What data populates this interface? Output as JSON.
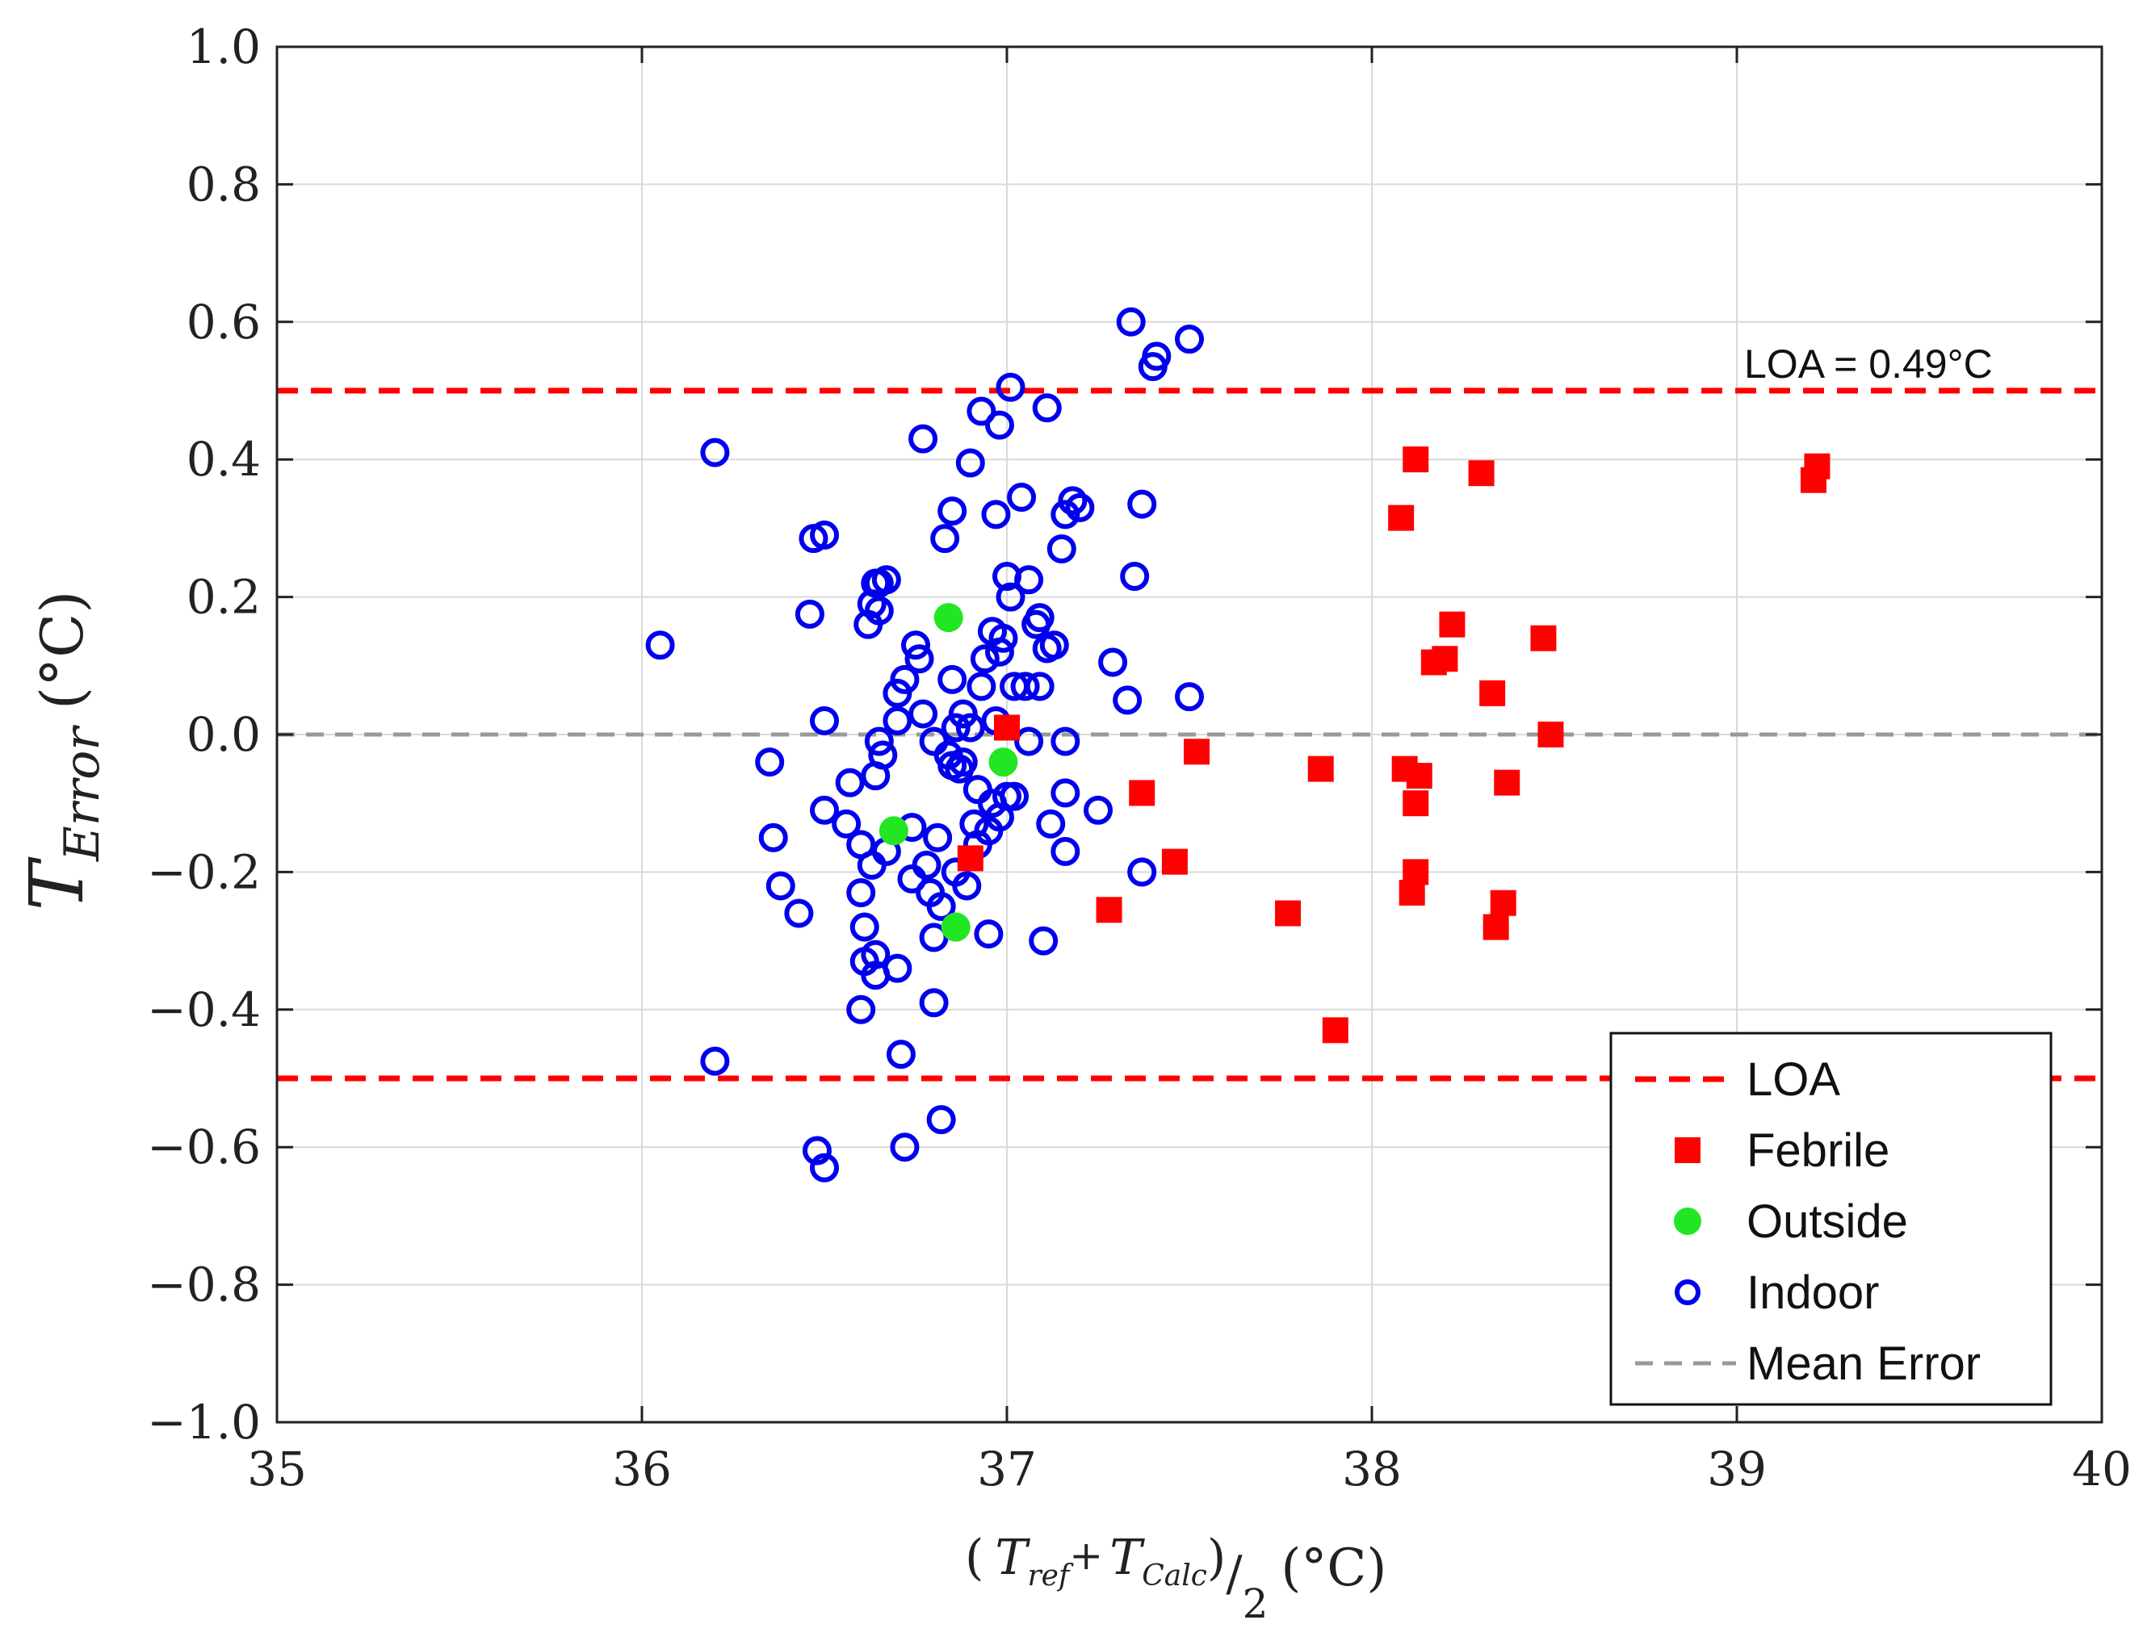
{
  "chart_data": {
    "type": "scatter",
    "title": "",
    "xlabel": {
      "open": "(",
      "t1": "T",
      "s1": "ref",
      "plus": "+",
      "t2": "T",
      "s2": "Calc",
      "close": ")",
      "slash": "/",
      "den": "2",
      "unit": "(°C)"
    },
    "ylabel": {
      "t": "T",
      "sub": "Error",
      "unit": "(°C)"
    },
    "xlim": [
      35,
      40
    ],
    "ylim": [
      -1.0,
      1.0
    ],
    "x_ticks": [
      35,
      36,
      37,
      38,
      39,
      40
    ],
    "x_tick_labels": [
      "35",
      "36",
      "37",
      "38",
      "39",
      "40"
    ],
    "y_ticks": [
      1.0,
      0.8,
      0.6,
      0.4,
      0.2,
      0.0,
      -0.2,
      -0.4,
      -0.6,
      -0.8,
      -1.0
    ],
    "y_tick_labels": [
      "1.0",
      "0.8",
      "0.6",
      "0.4",
      "0.2",
      "0.0",
      "−0.2",
      "−0.4",
      "−0.6",
      "−0.8",
      "−1.0"
    ],
    "grid": true,
    "reference_lines": [
      {
        "name": "LOA",
        "y": 0.5,
        "color": "#ff0000",
        "style": "dashed"
      },
      {
        "name": "LOA",
        "y": -0.5,
        "color": "#ff0000",
        "style": "dashed"
      },
      {
        "name": "Mean Error",
        "y": 0.0,
        "color": "#999999",
        "style": "dashed"
      }
    ],
    "annotation": "LOA = 0.49°C",
    "legend": {
      "location": "bottom-right",
      "entries": [
        {
          "label": "LOA",
          "marker": "dashed-line",
          "color": "#ff0000"
        },
        {
          "label": "Febrile",
          "marker": "square",
          "color": "#ff0000"
        },
        {
          "label": "Outside",
          "marker": "filled-circle",
          "color": "#22e622"
        },
        {
          "label": "Indoor",
          "marker": "open-circle",
          "color": "#0000ee"
        },
        {
          "label": "Mean Error",
          "marker": "dashed-line",
          "color": "#999999"
        }
      ]
    },
    "series": [
      {
        "name": "Indoor",
        "marker": "open-circle",
        "color": "#0000ee",
        "points": [
          [
            36.05,
            0.13
          ],
          [
            36.2,
            0.41
          ],
          [
            36.2,
            -0.475
          ],
          [
            36.35,
            -0.04
          ],
          [
            36.36,
            -0.15
          ],
          [
            36.38,
            -0.22
          ],
          [
            36.43,
            -0.26
          ],
          [
            36.46,
            0.175
          ],
          [
            36.47,
            0.285
          ],
          [
            36.5,
            0.29
          ],
          [
            36.48,
            -0.605
          ],
          [
            36.5,
            -0.63
          ],
          [
            36.5,
            0.02
          ],
          [
            36.5,
            -0.11
          ],
          [
            36.56,
            -0.13
          ],
          [
            36.57,
            -0.07
          ],
          [
            36.6,
            -0.16
          ],
          [
            36.6,
            -0.23
          ],
          [
            36.61,
            -0.28
          ],
          [
            36.61,
            -0.33
          ],
          [
            36.6,
            -0.4
          ],
          [
            36.62,
            0.16
          ],
          [
            36.63,
            0.19
          ],
          [
            36.64,
            0.22
          ],
          [
            36.65,
            0.22
          ],
          [
            36.67,
            0.225
          ],
          [
            36.65,
            0.18
          ],
          [
            36.64,
            -0.06
          ],
          [
            36.65,
            -0.01
          ],
          [
            36.66,
            -0.03
          ],
          [
            36.63,
            -0.19
          ],
          [
            36.64,
            -0.35
          ],
          [
            36.64,
            -0.32
          ],
          [
            36.67,
            -0.17
          ],
          [
            36.7,
            0.02
          ],
          [
            36.7,
            0.06
          ],
          [
            36.72,
            0.08
          ],
          [
            36.7,
            -0.34
          ],
          [
            36.71,
            -0.465
          ],
          [
            36.72,
            -0.6
          ],
          [
            36.74,
            -0.135
          ],
          [
            36.74,
            -0.21
          ],
          [
            36.75,
            0.13
          ],
          [
            36.76,
            0.11
          ],
          [
            36.77,
            0.43
          ],
          [
            36.77,
            0.03
          ],
          [
            36.78,
            -0.19
          ],
          [
            36.79,
            -0.23
          ],
          [
            36.8,
            -0.01
          ],
          [
            36.8,
            -0.295
          ],
          [
            36.8,
            -0.39
          ],
          [
            36.81,
            -0.15
          ],
          [
            36.82,
            -0.56
          ],
          [
            36.82,
            -0.25
          ],
          [
            36.83,
            0.285
          ],
          [
            36.84,
            -0.03
          ],
          [
            36.85,
            0.325
          ],
          [
            36.85,
            0.08
          ],
          [
            36.85,
            -0.045
          ],
          [
            36.86,
            0.01
          ],
          [
            36.86,
            -0.2
          ],
          [
            36.87,
            -0.05
          ],
          [
            36.88,
            0.03
          ],
          [
            36.88,
            -0.04
          ],
          [
            36.89,
            -0.22
          ],
          [
            36.9,
            0.395
          ],
          [
            36.9,
            0.01
          ],
          [
            36.91,
            -0.13
          ],
          [
            36.92,
            -0.08
          ],
          [
            36.92,
            -0.16
          ],
          [
            36.93,
            0.47
          ],
          [
            36.93,
            0.07
          ],
          [
            36.94,
            0.11
          ],
          [
            36.95,
            -0.14
          ],
          [
            36.95,
            -0.29
          ],
          [
            36.96,
            0.15
          ],
          [
            36.96,
            -0.1
          ],
          [
            36.97,
            0.32
          ],
          [
            36.97,
            0.02
          ],
          [
            36.98,
            0.45
          ],
          [
            36.98,
            0.12
          ],
          [
            36.98,
            -0.12
          ],
          [
            36.99,
            0.14
          ],
          [
            37.0,
            0.23
          ],
          [
            37.0,
            -0.09
          ],
          [
            37.01,
            0.505
          ],
          [
            37.01,
            0.2
          ],
          [
            37.02,
            0.07
          ],
          [
            37.02,
            -0.09
          ],
          [
            37.04,
            0.345
          ],
          [
            37.05,
            0.07
          ],
          [
            37.06,
            0.225
          ],
          [
            37.06,
            -0.01
          ],
          [
            37.08,
            0.16
          ],
          [
            37.09,
            0.17
          ],
          [
            37.09,
            0.07
          ],
          [
            37.1,
            -0.3
          ],
          [
            37.11,
            0.475
          ],
          [
            37.11,
            0.125
          ],
          [
            37.12,
            -0.13
          ],
          [
            37.13,
            0.13
          ],
          [
            37.15,
            0.27
          ],
          [
            37.16,
            0.32
          ],
          [
            37.16,
            -0.01
          ],
          [
            37.16,
            -0.085
          ],
          [
            37.16,
            -0.17
          ],
          [
            37.18,
            0.34
          ],
          [
            37.2,
            0.33
          ],
          [
            37.25,
            -0.11
          ],
          [
            37.29,
            0.105
          ],
          [
            37.34,
            0.6
          ],
          [
            37.33,
            0.05
          ],
          [
            37.35,
            0.23
          ],
          [
            37.37,
            0.335
          ],
          [
            37.37,
            -0.2
          ],
          [
            37.4,
            0.535
          ],
          [
            37.41,
            0.55
          ],
          [
            37.5,
            0.575
          ],
          [
            37.5,
            0.055
          ]
        ]
      },
      {
        "name": "Febrile",
        "marker": "square",
        "color": "#ff0000",
        "points": [
          [
            36.9,
            -0.18
          ],
          [
            37.0,
            0.01
          ],
          [
            37.28,
            -0.255
          ],
          [
            37.37,
            -0.085
          ],
          [
            37.46,
            -0.185
          ],
          [
            37.52,
            -0.025
          ],
          [
            37.77,
            -0.26
          ],
          [
            37.86,
            -0.05
          ],
          [
            37.9,
            -0.43
          ],
          [
            38.08,
            0.315
          ],
          [
            38.09,
            -0.05
          ],
          [
            38.12,
            0.4
          ],
          [
            38.11,
            -0.23
          ],
          [
            38.12,
            -0.2
          ],
          [
            38.12,
            -0.1
          ],
          [
            38.13,
            -0.06
          ],
          [
            38.17,
            0.105
          ],
          [
            38.2,
            0.11
          ],
          [
            38.22,
            0.16
          ],
          [
            38.3,
            0.38
          ],
          [
            38.33,
            0.06
          ],
          [
            38.34,
            -0.28
          ],
          [
            38.36,
            -0.245
          ],
          [
            38.37,
            -0.07
          ],
          [
            38.47,
            0.14
          ],
          [
            38.49,
            0.0
          ],
          [
            39.21,
            0.37
          ],
          [
            39.22,
            0.39
          ]
        ]
      },
      {
        "name": "Outside",
        "marker": "filled-circle",
        "color": "#22e622",
        "points": [
          [
            36.69,
            -0.14
          ],
          [
            36.84,
            0.17
          ],
          [
            36.86,
            -0.28
          ],
          [
            36.99,
            -0.04
          ]
        ]
      }
    ]
  }
}
